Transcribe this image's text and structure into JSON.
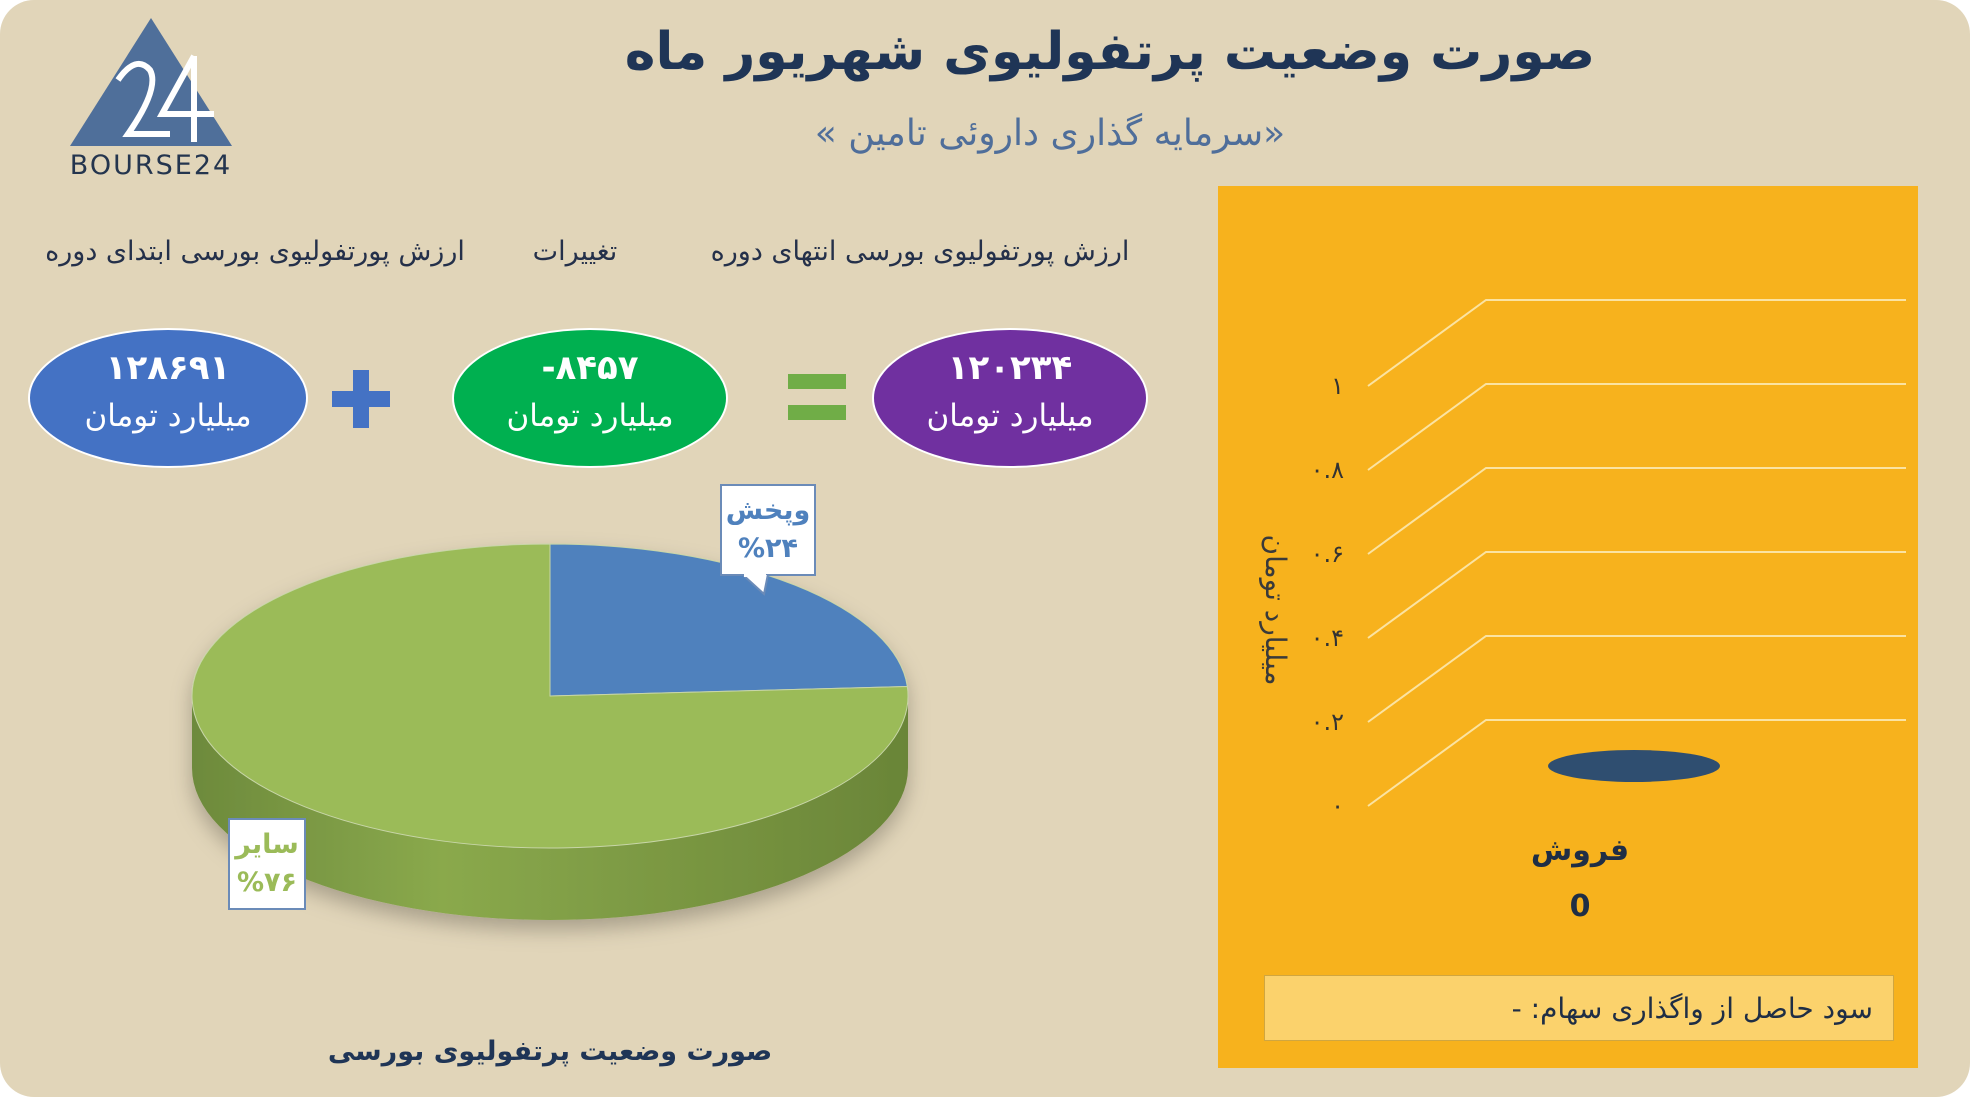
{
  "header": {
    "title": "صورت وضعیت پرتفولیوی شهریور ماه",
    "subtitle": "«سرمایه گذاری داروئی تامین »",
    "logo_text": "BOURSE24",
    "logo_icon": "triangle-24-logo-icon"
  },
  "summary": {
    "start_label": "ارزش پورتفولیوی بورسی ابتدای دوره",
    "change_label": "تغییرات",
    "end_label": "ارزش پورتفولیوی بورسی انتهای دوره",
    "start_value": "۱۲۸۶۹۱",
    "change_value": "-۸۴۵۷",
    "end_value": "۱۲۰۲۳۴",
    "unit": "میلیارد تومان",
    "plus_symbol": "plus-icon",
    "equals_symbol": "equals-icon",
    "colors": {
      "start": "#4472c4",
      "change": "#00b050",
      "end": "#7030a0",
      "plus": "#4472c4",
      "equals": "#70ad47"
    }
  },
  "chart_data": [
    {
      "type": "pie",
      "title": "صورت وضعیت پرتفولیوی بورسی",
      "slices": [
        {
          "label": "وپخش",
          "pct_text": "%۲۴",
          "value": 24,
          "color": "#4f81bd"
        },
        {
          "label": "سایر",
          "pct_text": "%۷۶",
          "value": 76,
          "color": "#9bbb59"
        }
      ]
    },
    {
      "type": "bar",
      "ylabel": "میلیارد تومان",
      "yticks": [
        "۰",
        "۰.۲",
        "۰.۴",
        "۰.۶",
        "۰.۸",
        "۱"
      ],
      "ylim": [
        0,
        1
      ],
      "categories": [
        "فروش"
      ],
      "values": [
        0
      ],
      "value_labels": [
        "0"
      ],
      "bar_color": "#2f4e70",
      "background": "#f7b21d",
      "footer": "سود حاصل از واگذاری سهام: -"
    }
  ]
}
